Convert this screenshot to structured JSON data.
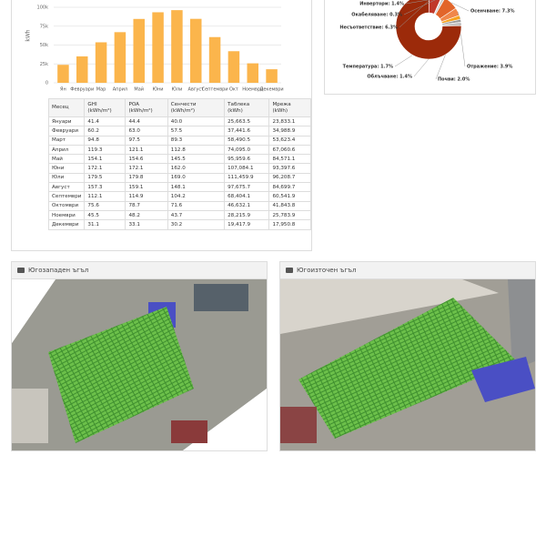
{
  "chart_data": [
    {
      "type": "bar",
      "y_label": "kWh",
      "categories": [
        "Ян",
        "Февруари",
        "Мар",
        "Април",
        "Май",
        "Юни",
        "Юли",
        "Август",
        "Септември",
        "Окт",
        "Ноември",
        "Декември"
      ],
      "values": [
        23833.1,
        34988.9,
        53623.4,
        67060.6,
        84571.1,
        93397.6,
        96208.7,
        84699.7,
        60541.9,
        41843.8,
        25783.9,
        17950.8
      ],
      "color": "#fbb54c",
      "ylim": [
        0,
        100000
      ],
      "yticks": [
        0,
        {
          "value": 25000,
          "label": "25k"
        },
        {
          "value": 50000,
          "label": "50k"
        },
        {
          "value": 75000,
          "label": "75k"
        },
        {
          "value": 100000,
          "label": "100k"
        }
      ],
      "grid": true
    },
    {
      "type": "pie",
      "donut": true,
      "categories": [
        "Осенчване: 7.3%",
        "Отражение: 3.9%",
        "Почви: 2.0%",
        "Облъчване: 1.4%",
        "Температура: 1.7%",
        null,
        "Несъответствие: 6.3%",
        "Окабеляване: 0.3%",
        "Инвертори: 1.4%"
      ],
      "values": [
        7.3,
        3.9,
        2.0,
        1.4,
        1.7,
        75.7,
        6.3,
        0.3,
        1.4
      ],
      "colors": [
        "#e2652a",
        "#f0874a",
        "#f7a21b",
        "#9a9a9a",
        "#c4c4c4",
        "#9c2a0a",
        "#c0392b",
        "#e8e8e8",
        "#d0d0d0"
      ]
    }
  ],
  "table": {
    "headers": [
      "Месец",
      "GHI (kWh/m²)",
      "POA (kWh/m²)",
      "Сенчести (kWh/m²)",
      "Таблека (kWh)",
      "Мрежа (kWh)"
    ],
    "rows": [
      [
        "Януари",
        "41.4",
        "44.4",
        "40.0",
        "25,663.5",
        "23,833.1"
      ],
      [
        "Февруари",
        "60.2",
        "63.0",
        "57.5",
        "37,441.6",
        "34,988.9"
      ],
      [
        "Март",
        "94.8",
        "97.5",
        "89.3",
        "58,490.5",
        "53,623.4"
      ],
      [
        "Април",
        "119.3",
        "121.1",
        "112.8",
        "74,095.0",
        "67,060.6"
      ],
      [
        "Май",
        "154.1",
        "154.6",
        "145.5",
        "95,959.6",
        "84,571.1"
      ],
      [
        "Юни",
        "172.1",
        "172.1",
        "162.0",
        "107,084.1",
        "93,397.6"
      ],
      [
        "Юли",
        "179.5",
        "179.8",
        "169.0",
        "111,459.9",
        "96,208.7"
      ],
      [
        "Август",
        "157.3",
        "159.1",
        "148.1",
        "97,675.7",
        "84,699.7"
      ],
      [
        "Септември",
        "112.1",
        "114.9",
        "104.2",
        "68,404.1",
        "60,541.9"
      ],
      [
        "Октомври",
        "75.6",
        "78.7",
        "71.6",
        "46,632.1",
        "41,843.8"
      ],
      [
        "Ноември",
        "45.5",
        "48.2",
        "43.7",
        "28,215.9",
        "25,783.9"
      ],
      [
        "Декември",
        "31.1",
        "33.1",
        "30.2",
        "19,417.9",
        "17,950.8"
      ]
    ]
  },
  "photos": [
    {
      "title": "Югозападен ъгъл"
    },
    {
      "title": "Югоизточен ъгъл"
    }
  ]
}
